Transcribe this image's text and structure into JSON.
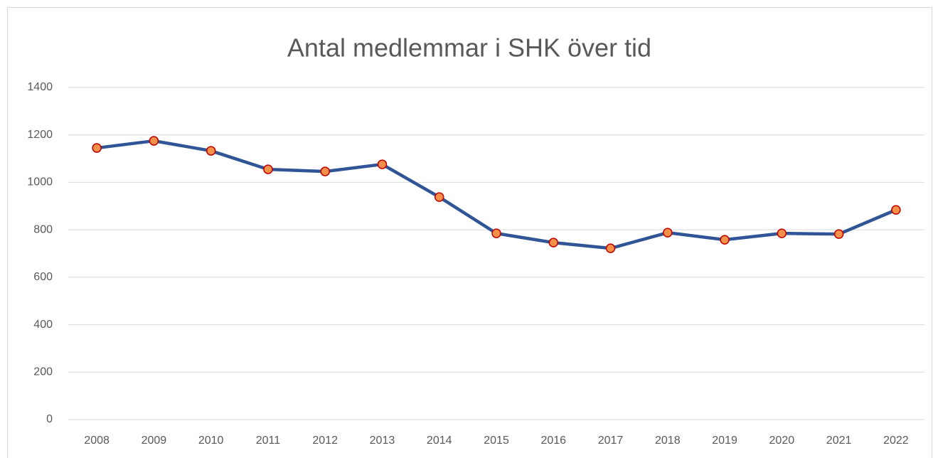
{
  "chart_data": {
    "type": "line",
    "title": "Antal medlemmar i SHK över tid",
    "categories": [
      "2008",
      "2009",
      "2010",
      "2011",
      "2012",
      "2013",
      "2014",
      "2015",
      "2016",
      "2017",
      "2018",
      "2019",
      "2020",
      "2021",
      "2022"
    ],
    "series": [
      {
        "name": "Antal medlemmar",
        "color": "#2f5597",
        "marker_color": "#f4904a",
        "marker_edge": "#c00000",
        "values": [
          1145,
          1175,
          1133,
          1055,
          1046,
          1076,
          938,
          785,
          746,
          722,
          788,
          758,
          785,
          782,
          884
        ]
      }
    ],
    "ylim": [
      0,
      1400
    ],
    "yticks": [
      0,
      200,
      400,
      600,
      800,
      1000,
      1200,
      1400
    ],
    "grid": true
  }
}
